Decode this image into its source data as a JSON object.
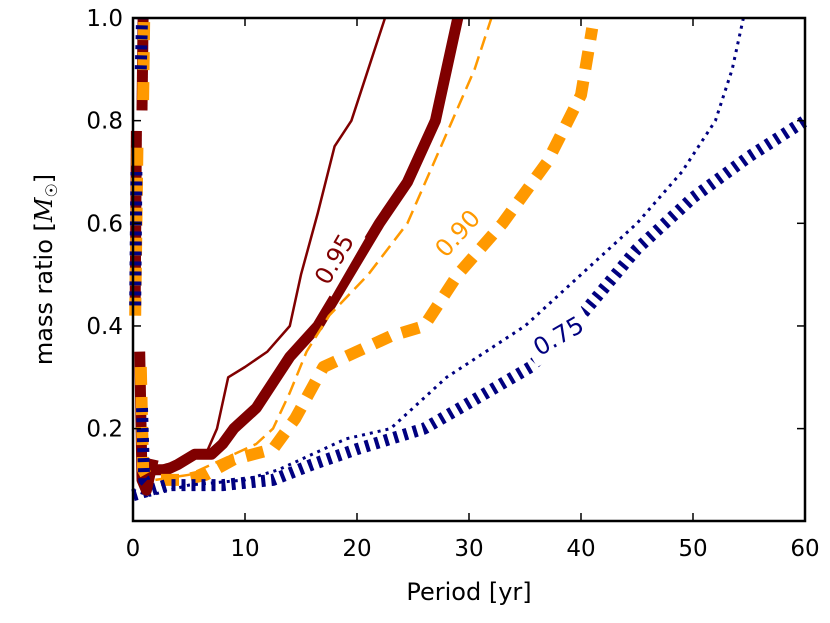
{
  "chart_data": {
    "type": "line",
    "title": "",
    "xlabel": "Period [yr]",
    "ylabel": "mass ratio [M☉]",
    "ylabel_main": "mass ratio [",
    "ylabel_symbol": "M",
    "ylabel_sub": "☉",
    "ylabel_close": "]",
    "xlim": [
      0,
      60
    ],
    "ylim": [
      0.02,
      1.0
    ],
    "xticks": [
      0,
      10,
      20,
      30,
      40,
      50,
      60
    ],
    "xtick_labels": [
      "0",
      "10",
      "20",
      "30",
      "40",
      "50",
      "60"
    ],
    "yticks": [
      0.2,
      0.4,
      0.6,
      0.8,
      1.0
    ],
    "ytick_labels": [
      "0.2",
      "0.4",
      "0.6",
      "0.8",
      "1.0"
    ],
    "grid": false,
    "series": [
      {
        "name": "0.95 thin",
        "color": "#800000",
        "style": "solid-thin",
        "points": [
          [
            1.5,
            0.12
          ],
          [
            3,
            0.13
          ],
          [
            5,
            0.14
          ],
          [
            6.5,
            0.15
          ],
          [
            7.5,
            0.2
          ],
          [
            8.5,
            0.3
          ],
          [
            10,
            0.32
          ],
          [
            12,
            0.35
          ],
          [
            14,
            0.4
          ],
          [
            15,
            0.5
          ],
          [
            16.5,
            0.62
          ],
          [
            18,
            0.75
          ],
          [
            19.5,
            0.8
          ],
          [
            21,
            0.9
          ],
          [
            22.5,
            1.0
          ]
        ]
      },
      {
        "name": "0.95",
        "color": "#800000",
        "style": "solid-thick",
        "label": "0.95",
        "points": [
          [
            1.5,
            0.12
          ],
          [
            3,
            0.12
          ],
          [
            4,
            0.13
          ],
          [
            5.5,
            0.15
          ],
          [
            7,
            0.15
          ],
          [
            8,
            0.17
          ],
          [
            9,
            0.2
          ],
          [
            11,
            0.24
          ],
          [
            14,
            0.34
          ],
          [
            16.5,
            0.4
          ],
          [
            22,
            0.6
          ],
          [
            24.5,
            0.68
          ],
          [
            27,
            0.8
          ],
          [
            28,
            0.9
          ],
          [
            29,
            1.0
          ]
        ]
      },
      {
        "name": "0.90 thin",
        "color": "#ff9900",
        "style": "dashed-thin",
        "points": [
          [
            2,
            0.1
          ],
          [
            5,
            0.11
          ],
          [
            7,
            0.13
          ],
          [
            9,
            0.15
          ],
          [
            11,
            0.17
          ],
          [
            12.5,
            0.2
          ],
          [
            14,
            0.27
          ],
          [
            15.5,
            0.35
          ],
          [
            17.5,
            0.42
          ],
          [
            21,
            0.5
          ],
          [
            24.5,
            0.6
          ],
          [
            26.5,
            0.7
          ],
          [
            28.5,
            0.8
          ],
          [
            30.5,
            0.9
          ],
          [
            32,
            1.0
          ]
        ]
      },
      {
        "name": "0.90",
        "color": "#ff9900",
        "style": "dashed-thick",
        "label": "0.90",
        "points": [
          [
            2.5,
            0.1
          ],
          [
            4.5,
            0.1
          ],
          [
            6.5,
            0.11
          ],
          [
            9,
            0.14
          ],
          [
            12.5,
            0.16
          ],
          [
            14.5,
            0.22
          ],
          [
            17,
            0.32
          ],
          [
            20,
            0.35
          ],
          [
            23,
            0.38
          ],
          [
            26,
            0.4
          ],
          [
            29,
            0.5
          ],
          [
            33,
            0.6
          ],
          [
            37,
            0.72
          ],
          [
            40,
            0.85
          ],
          [
            41,
            0.98
          ]
        ]
      },
      {
        "name": "0.75 thin",
        "color": "#000080",
        "style": "dotted-thin",
        "points": [
          [
            0,
            0.08
          ],
          [
            1.5,
            0.07
          ],
          [
            5,
            0.09
          ],
          [
            10,
            0.1
          ],
          [
            13,
            0.12
          ],
          [
            16,
            0.15
          ],
          [
            19,
            0.18
          ],
          [
            23,
            0.2
          ],
          [
            28,
            0.3
          ],
          [
            35,
            0.4
          ],
          [
            40,
            0.5
          ],
          [
            45,
            0.6
          ],
          [
            49,
            0.7
          ],
          [
            52,
            0.8
          ],
          [
            53.5,
            0.9
          ],
          [
            54.5,
            1.0
          ]
        ]
      },
      {
        "name": "0.75",
        "color": "#000080",
        "style": "dotted-thick",
        "label": "0.75",
        "points": [
          [
            0,
            0.07
          ],
          [
            3,
            0.09
          ],
          [
            8,
            0.09
          ],
          [
            12.5,
            0.1
          ],
          [
            16,
            0.13
          ],
          [
            20,
            0.16
          ],
          [
            26,
            0.2
          ],
          [
            30,
            0.25
          ],
          [
            35.5,
            0.32
          ],
          [
            40,
            0.42
          ],
          [
            45,
            0.55
          ],
          [
            50,
            0.65
          ],
          [
            55,
            0.73
          ],
          [
            60,
            0.8
          ]
        ]
      },
      {
        "name": "short-period spike dark red",
        "color": "#800000",
        "style": "solid-thick",
        "points": [
          [
            0.2,
            0.45
          ],
          [
            0.3,
            0.78
          ]
        ]
      },
      {
        "name": "short-period spike orange",
        "color": "#ff9900",
        "style": "dashed-thick",
        "points": [
          [
            0.2,
            0.42
          ],
          [
            0.4,
            0.76
          ]
        ]
      },
      {
        "name": "short-period spike navy",
        "color": "#000080",
        "style": "dotted-thick",
        "points": [
          [
            0.2,
            0.44
          ],
          [
            0.3,
            0.7
          ]
        ]
      },
      {
        "name": "top spike dark red",
        "color": "#800000",
        "style": "solid-thick",
        "points": [
          [
            0.8,
            0.82
          ],
          [
            0.9,
            1.0
          ]
        ]
      },
      {
        "name": "top spike orange",
        "color": "#ff9900",
        "style": "dashed-thick",
        "points": [
          [
            0.9,
            0.84
          ],
          [
            1.0,
            1.0
          ]
        ]
      },
      {
        "name": "top spike navy",
        "color": "#000080",
        "style": "dotted-thick",
        "points": [
          [
            0.7,
            0.9
          ],
          [
            0.8,
            1.0
          ]
        ]
      },
      {
        "name": "low spike dark red",
        "color": "#800000",
        "style": "solid-thick",
        "points": [
          [
            0.6,
            0.35
          ],
          [
            0.8,
            0.1
          ],
          [
            1.2,
            0.08
          ],
          [
            1.8,
            0.14
          ]
        ]
      },
      {
        "name": "low spike orange",
        "color": "#ff9900",
        "style": "dashed-thick",
        "points": [
          [
            0.7,
            0.32
          ],
          [
            0.9,
            0.12
          ],
          [
            1.4,
            0.1
          ]
        ]
      },
      {
        "name": "low spike navy",
        "color": "#000080",
        "style": "dotted-thick",
        "points": [
          [
            0.8,
            0.24
          ],
          [
            1.0,
            0.1
          ],
          [
            1.5,
            0.09
          ]
        ]
      }
    ],
    "annotations": [
      {
        "text": "0.95",
        "color": "#800000",
        "x": 18.0,
        "y": 0.53,
        "angle": -60
      },
      {
        "text": "0.90",
        "color": "#ff9900",
        "x": 29.0,
        "y": 0.58,
        "angle": -48
      },
      {
        "text": "0.75",
        "color": "#000080",
        "x": 38.0,
        "y": 0.38,
        "angle": -30
      }
    ]
  }
}
